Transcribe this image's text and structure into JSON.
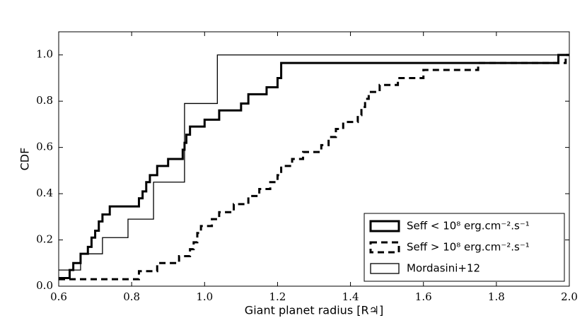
{
  "chart_data": {
    "type": "step",
    "xlabel": "Giant planet radius [R♃]",
    "ylabel": "CDF",
    "xlim": [
      0.6,
      2.0
    ],
    "ylim": [
      0,
      1.1
    ],
    "xticks": [
      0.6,
      0.8,
      {
        "value": 1,
        "label": "1.0"
      },
      1.2,
      1.4,
      1.6,
      1.8,
      {
        "value": 2,
        "label": "2.0"
      }
    ],
    "yticks": [
      {
        "value": 0,
        "label": "0.0"
      },
      0.2,
      0.4,
      0.6,
      0.8,
      {
        "value": 1,
        "label": "1.0"
      }
    ],
    "legend": "lower right",
    "series": [
      {
        "name": "Seff < 10⁸ erg.cm⁻².s⁻¹",
        "color": "#000000",
        "linestyle": "solid",
        "linewidth": 3,
        "x": [
          0.6,
          0.63,
          0.64,
          0.66,
          0.68,
          0.69,
          0.7,
          0.71,
          0.72,
          0.74,
          0.82,
          0.83,
          0.84,
          0.85,
          0.87,
          0.9,
          0.94,
          0.945,
          0.95,
          0.96,
          1.0,
          1.04,
          1.1,
          1.12,
          1.17,
          1.2,
          1.21,
          1.97,
          2.0
        ],
        "values": [
          0.035,
          0.07,
          0.1,
          0.14,
          0.17,
          0.21,
          0.24,
          0.28,
          0.31,
          0.345,
          0.38,
          0.41,
          0.45,
          0.48,
          0.52,
          0.55,
          0.59,
          0.62,
          0.655,
          0.69,
          0.72,
          0.76,
          0.79,
          0.83,
          0.86,
          0.9,
          0.965,
          1.0,
          1.0
        ]
      },
      {
        "name": "Seff > 10⁸ erg.cm⁻².s⁻¹",
        "color": "#000000",
        "linestyle": "dashed",
        "linewidth": 3,
        "x": [
          0.6,
          0.82,
          0.87,
          0.93,
          0.96,
          0.97,
          0.98,
          0.99,
          1.02,
          1.04,
          1.08,
          1.12,
          1.15,
          1.18,
          1.2,
          1.21,
          1.24,
          1.27,
          1.32,
          1.34,
          1.36,
          1.38,
          1.42,
          1.43,
          1.44,
          1.45,
          1.48,
          1.53,
          1.6,
          1.75,
          1.99,
          2.0
        ],
        "values": [
          0.03,
          0.065,
          0.1,
          0.13,
          0.16,
          0.19,
          0.23,
          0.26,
          0.29,
          0.32,
          0.355,
          0.39,
          0.42,
          0.45,
          0.48,
          0.52,
          0.55,
          0.58,
          0.61,
          0.645,
          0.68,
          0.71,
          0.74,
          0.775,
          0.81,
          0.84,
          0.87,
          0.9,
          0.935,
          0.965,
          1.0,
          1.0
        ]
      },
      {
        "name": "Mordasini+12",
        "color": "#000000",
        "linestyle": "solid",
        "linewidth": 1.3,
        "x": [
          0.6,
          0.66,
          0.72,
          0.79,
          0.86,
          0.945,
          1.035,
          2.0
        ],
        "values": [
          0.07,
          0.14,
          0.21,
          0.29,
          0.45,
          0.79,
          1.0,
          1.0
        ]
      }
    ]
  }
}
